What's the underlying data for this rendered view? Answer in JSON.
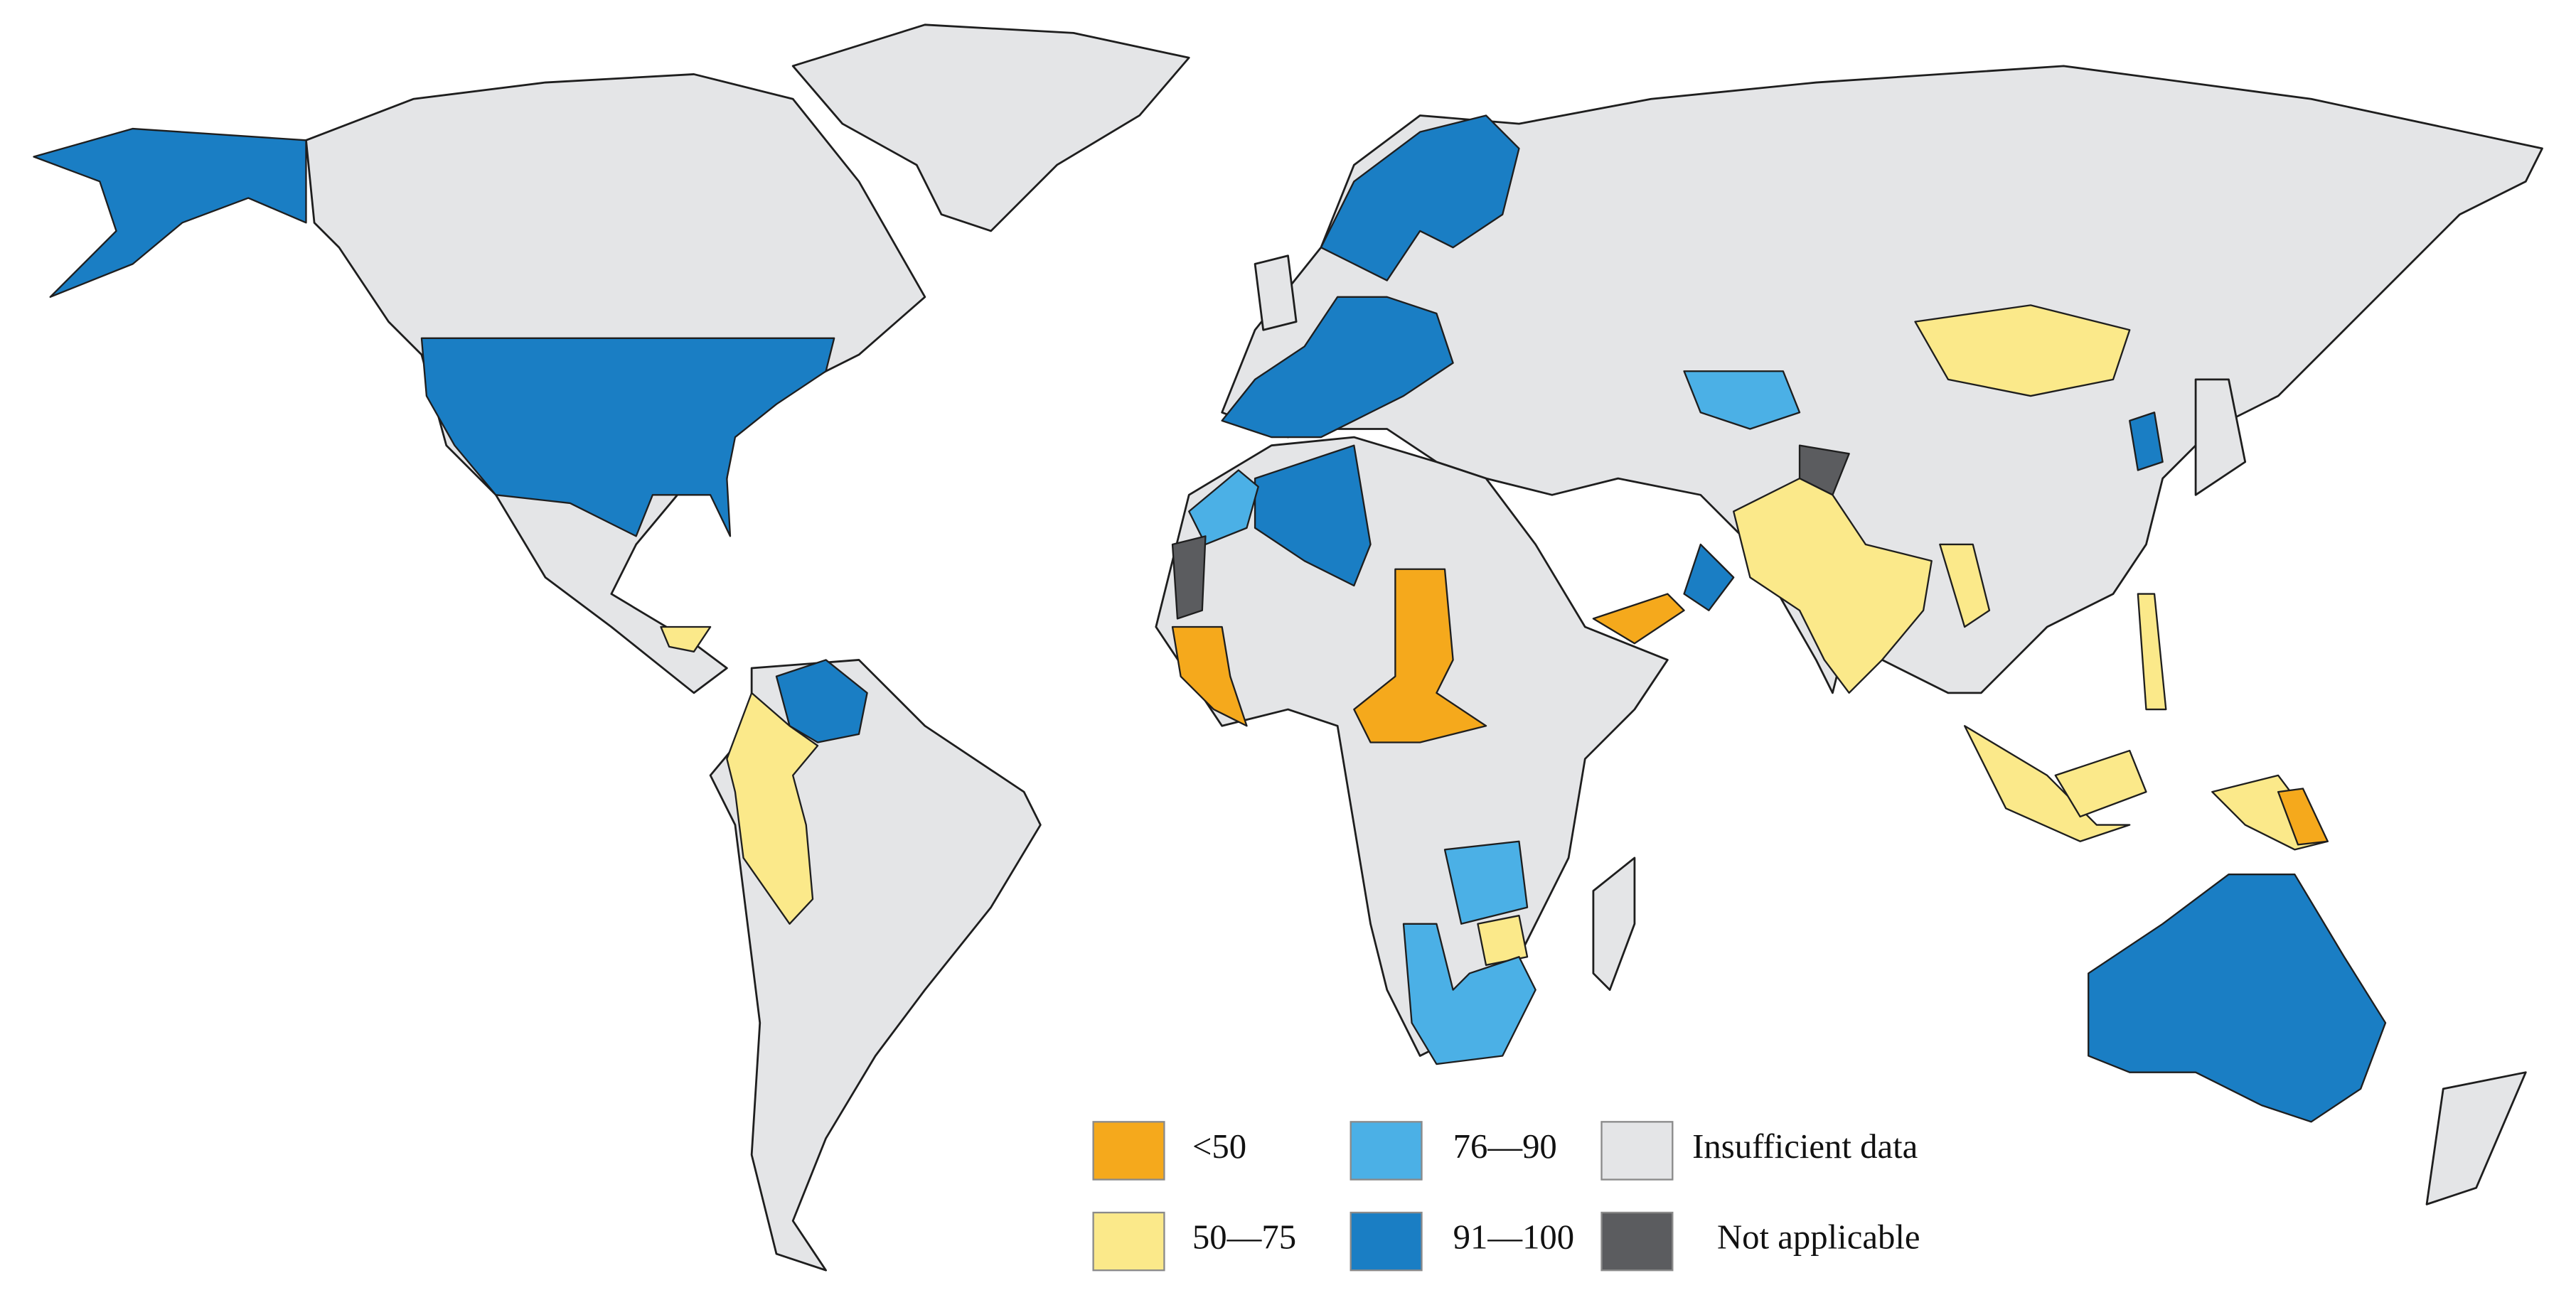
{
  "legend": {
    "items": [
      {
        "label": "<50",
        "color": "#f5a91c"
      },
      {
        "label": "50—75",
        "color": "#fbe98a"
      },
      {
        "label": "76—90",
        "color": "#4bb0e6"
      },
      {
        "label": "91—100",
        "color": "#1a7ec4"
      },
      {
        "label": "Insufficient  data",
        "color": "#e4e5e7"
      },
      {
        "label": "Not applicable",
        "color": "#5b5c5f"
      }
    ]
  }
}
